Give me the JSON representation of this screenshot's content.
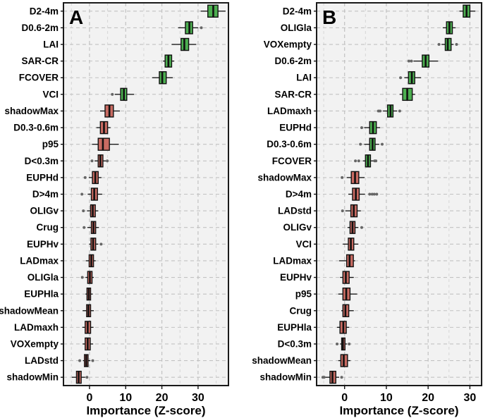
{
  "figure": {
    "xlabel": "Importance (Z-score)",
    "colors": {
      "green": "#4CAF50",
      "red": "#C96B62",
      "outlier": "#666666",
      "grid_major": "#C2C2C2",
      "grid_minor": "#D6D6D6",
      "panel_bg": "#F2F2F2",
      "border": "#1A1A1A"
    },
    "panels": [
      "A",
      "B"
    ]
  },
  "chart_data": [
    {
      "type": "boxplot-horizontal",
      "panel_label": "A",
      "xlabel": "Importance (Z-score)",
      "xticks": [
        0,
        10,
        20,
        30
      ],
      "xminor": [
        -5,
        5,
        15,
        25,
        35
      ],
      "xlim": [
        -7.2,
        38.4
      ],
      "grid": true,
      "categories": [
        "D2-4m",
        "D0.6-2m",
        "LAI",
        "SAR-CR",
        "FCOVER",
        "VCI",
        "shadowMax",
        "D0.3-0.6m",
        "p95",
        "D<0.3m",
        "EUPHd",
        "D>4m",
        "OLIGv",
        "Crug",
        "EUPHv",
        "LADmax",
        "OLIGla",
        "EUPHla",
        "shadowMean",
        "LADmaxh",
        "VOXempty",
        "LADstd",
        "shadowMin"
      ],
      "boxes": [
        {
          "label": "D2-4m",
          "color": "green",
          "lo": 30.7,
          "q1": 32.7,
          "med": 34.2,
          "q3": 35.5,
          "hi": 37.6,
          "outliers": []
        },
        {
          "label": "D0.6-2m",
          "color": "green",
          "lo": 24.5,
          "q1": 26.5,
          "med": 27.6,
          "q3": 28.5,
          "hi": 30.0,
          "outliers": [
            30.9
          ]
        },
        {
          "label": "LAI",
          "color": "green",
          "lo": 22.7,
          "q1": 25.3,
          "med": 26.2,
          "q3": 27.4,
          "hi": 29.5,
          "outliers": []
        },
        {
          "label": "SAR-CR",
          "color": "green",
          "lo": 20.3,
          "q1": 20.9,
          "med": 21.8,
          "q3": 22.7,
          "hi": 23.4,
          "outliers": []
        },
        {
          "label": "FCOVER",
          "color": "green",
          "lo": 17.3,
          "q1": 19.3,
          "med": 20.1,
          "q3": 21.2,
          "hi": 23.0,
          "outliers": []
        },
        {
          "label": "VCI",
          "color": "green",
          "lo": 7.0,
          "q1": 8.6,
          "med": 9.5,
          "q3": 10.3,
          "hi": 12.3,
          "outliers": [
            6.3
          ]
        },
        {
          "label": "shadowMax",
          "color": "red",
          "lo": 2.9,
          "q1": 4.3,
          "med": 5.5,
          "q3": 6.6,
          "hi": 8.4,
          "outliers": []
        },
        {
          "label": "D0.3-0.6m",
          "color": "red",
          "lo": 1.9,
          "q1": 3.0,
          "med": 4.0,
          "q3": 5.0,
          "hi": 5.8,
          "outliers": []
        },
        {
          "label": "p95",
          "color": "red",
          "lo": 0.7,
          "q1": 2.4,
          "med": 3.7,
          "q3": 5.5,
          "hi": 8.1,
          "outliers": []
        },
        {
          "label": "D<0.3m",
          "color": "red",
          "lo": 1.4,
          "q1": 2.4,
          "med": 3.0,
          "q3": 3.7,
          "hi": 4.5,
          "outliers": [
            0.7,
            4.9
          ]
        },
        {
          "label": "EUPHd",
          "color": "red",
          "lo": -0.2,
          "q1": 0.8,
          "med": 1.6,
          "q3": 2.4,
          "hi": 3.3,
          "outliers": [
            -1.2
          ]
        },
        {
          "label": "D>4m",
          "color": "red",
          "lo": -0.5,
          "q1": 0.5,
          "med": 1.3,
          "q3": 2.2,
          "hi": 3.5,
          "outliers": [
            -2.1
          ]
        },
        {
          "label": "OLIGv",
          "color": "red",
          "lo": -0.7,
          "q1": 0.3,
          "med": 0.9,
          "q3": 1.6,
          "hi": 2.4,
          "outliers": [
            -1.7
          ]
        },
        {
          "label": "Crug",
          "color": "red",
          "lo": -0.6,
          "q1": 0.5,
          "med": 1.1,
          "q3": 1.7,
          "hi": 2.6,
          "outliers": [
            -1.5
          ]
        },
        {
          "label": "EUPHv",
          "color": "red",
          "lo": -0.1,
          "q1": 0.4,
          "med": 1.0,
          "q3": 1.7,
          "hi": 2.4,
          "outliers": [
            3.2
          ]
        },
        {
          "label": "LADmax",
          "color": "red",
          "lo": -1.0,
          "q1": -0.1,
          "med": 0.5,
          "q3": 1.1,
          "hi": 1.7,
          "outliers": []
        },
        {
          "label": "OLIGla",
          "color": "red",
          "lo": -1.1,
          "q1": -0.5,
          "med": 0.1,
          "q3": 0.7,
          "hi": 1.2,
          "outliers": [
            -2.0
          ]
        },
        {
          "label": "EUPHla",
          "color": "red",
          "lo": -1.1,
          "q1": -0.7,
          "med": -0.2,
          "q3": 0.3,
          "hi": 0.9,
          "outliers": []
        },
        {
          "label": "shadowMean",
          "color": "red",
          "lo": -1.9,
          "q1": -0.8,
          "med": -0.3,
          "q3": 0.3,
          "hi": 1.2,
          "outliers": []
        },
        {
          "label": "LADmaxh",
          "color": "red",
          "lo": -2.0,
          "q1": -1.2,
          "med": -0.5,
          "q3": 0.3,
          "hi": 1.1,
          "outliers": []
        },
        {
          "label": "VOXempty",
          "color": "red",
          "lo": -1.9,
          "q1": -1.2,
          "med": -0.5,
          "q3": 0.2,
          "hi": 1.0,
          "outliers": []
        },
        {
          "label": "LADstd",
          "color": "red",
          "lo": -1.8,
          "q1": -1.4,
          "med": -0.9,
          "q3": -0.4,
          "hi": 0.2,
          "outliers": [
            -2.7,
            0.9
          ]
        },
        {
          "label": "shadowMin",
          "color": "red",
          "lo": -4.9,
          "q1": -3.6,
          "med": -3.0,
          "q3": -2.3,
          "hi": -1.2,
          "outliers": [
            -0.7
          ]
        }
      ]
    },
    {
      "type": "boxplot-horizontal",
      "panel_label": "B",
      "xlabel": "Importance (Z-score)",
      "xticks": [
        0,
        10,
        20,
        30
      ],
      "xminor": [
        -5,
        5,
        15,
        25
      ],
      "xlim": [
        -6.7,
        32.8
      ],
      "grid": true,
      "categories": [
        "D2-4m",
        "OLIGla",
        "VOXempty",
        "D0.6-2m",
        "LAI",
        "SAR-CR",
        "LADmaxh",
        "EUPHd",
        "D0.3-0.6m",
        "FCOVER",
        "shadowMax",
        "D>4m",
        "LADstd",
        "OLIGv",
        "VCI",
        "LADmax",
        "EUPHv",
        "p95",
        "Crug",
        "EUPHla",
        "D<0.3m",
        "shadowMean",
        "shadowMin"
      ],
      "boxes": [
        {
          "label": "D2-4m",
          "color": "green",
          "lo": 27.5,
          "q1": 28.4,
          "med": 29.2,
          "q3": 30.0,
          "hi": 31.3,
          "outliers": []
        },
        {
          "label": "OLIGla",
          "color": "green",
          "lo": 23.5,
          "q1": 24.4,
          "med": 25.1,
          "q3": 25.8,
          "hi": 26.6,
          "outliers": []
        },
        {
          "label": "VOXempty",
          "color": "green",
          "lo": 23.2,
          "q1": 24.1,
          "med": 24.7,
          "q3": 25.5,
          "hi": 26.1,
          "outliers": [
            22.6,
            26.8
          ]
        },
        {
          "label": "D0.6-2m",
          "color": "green",
          "lo": 16.5,
          "q1": 18.6,
          "med": 19.4,
          "q3": 20.2,
          "hi": 22.4,
          "outliers": [
            15.4,
            16.0
          ]
        },
        {
          "label": "LAI",
          "color": "green",
          "lo": 14.3,
          "q1": 15.3,
          "med": 16.1,
          "q3": 16.8,
          "hi": 18.3,
          "outliers": [
            13.4
          ]
        },
        {
          "label": "SAR-CR",
          "color": "green",
          "lo": 13.2,
          "q1": 13.9,
          "med": 15.0,
          "q3": 16.2,
          "hi": 16.9,
          "outliers": []
        },
        {
          "label": "LADmaxh",
          "color": "green",
          "lo": 9.2,
          "q1": 10.3,
          "med": 11.0,
          "q3": 11.6,
          "hi": 12.6,
          "outliers": [
            8.1,
            8.5,
            13.2
          ]
        },
        {
          "label": "EUPHd",
          "color": "green",
          "lo": 4.7,
          "q1": 6.0,
          "med": 6.8,
          "q3": 7.6,
          "hi": 8.5,
          "outliers": [
            4.1
          ]
        },
        {
          "label": "D0.3-0.6m",
          "color": "green",
          "lo": 4.7,
          "q1": 6.0,
          "med": 6.7,
          "q3": 7.3,
          "hi": 8.3,
          "outliers": [
            3.8,
            9.0
          ]
        },
        {
          "label": "FCOVER",
          "color": "green",
          "lo": 4.4,
          "q1": 5.0,
          "med": 5.6,
          "q3": 6.2,
          "hi": 6.9,
          "outliers": [
            2.6,
            3.4,
            7.2,
            7.5
          ]
        },
        {
          "label": "shadowMax",
          "color": "red",
          "lo": 0.5,
          "q1": 1.6,
          "med": 2.5,
          "q3": 3.4,
          "hi": 4.8,
          "outliers": [
            -0.6
          ]
        },
        {
          "label": "D>4m",
          "color": "red",
          "lo": 0.9,
          "q1": 1.9,
          "med": 2.7,
          "q3": 3.5,
          "hi": 4.9,
          "outliers": [
            6.0,
            6.6,
            7.1,
            7.7
          ]
        },
        {
          "label": "LADstd",
          "color": "red",
          "lo": 0.2,
          "q1": 1.5,
          "med": 2.2,
          "q3": 3.0,
          "hi": 3.9,
          "outliers": [
            -0.5
          ]
        },
        {
          "label": "OLIGv",
          "color": "red",
          "lo": 0.7,
          "q1": 1.3,
          "med": 1.9,
          "q3": 2.5,
          "hi": 3.3,
          "outliers": [
            4.1
          ]
        },
        {
          "label": "VCI",
          "color": "red",
          "lo": -0.4,
          "q1": 0.9,
          "med": 1.5,
          "q3": 2.2,
          "hi": 3.3,
          "outliers": []
        },
        {
          "label": "LADmax",
          "color": "red",
          "lo": -1.3,
          "q1": 0.5,
          "med": 1.2,
          "q3": 2.1,
          "hi": 2.5,
          "outliers": []
        },
        {
          "label": "EUPHv",
          "color": "red",
          "lo": -1.1,
          "q1": -0.4,
          "med": 0.3,
          "q3": 1.1,
          "hi": 2.2,
          "outliers": []
        },
        {
          "label": "p95",
          "color": "red",
          "lo": -1.5,
          "q1": -0.4,
          "med": 0.4,
          "q3": 1.3,
          "hi": 3.0,
          "outliers": []
        },
        {
          "label": "Crug",
          "color": "red",
          "lo": -0.8,
          "q1": -0.4,
          "med": 0.2,
          "q3": 1.0,
          "hi": 2.2,
          "outliers": []
        },
        {
          "label": "EUPHla",
          "color": "red",
          "lo": -1.8,
          "q1": -1.1,
          "med": -0.3,
          "q3": 0.4,
          "hi": 1.1,
          "outliers": []
        },
        {
          "label": "D<0.3m",
          "color": "red",
          "lo": -1.1,
          "q1": -0.7,
          "med": -0.4,
          "q3": 0.1,
          "hi": 0.6,
          "outliers": [
            -1.8,
            1.1
          ]
        },
        {
          "label": "shadowMean",
          "color": "red",
          "lo": -1.5,
          "q1": -0.9,
          "med": -0.2,
          "q3": 0.7,
          "hi": 1.4,
          "outliers": []
        },
        {
          "label": "shadowMin",
          "color": "red",
          "lo": -4.6,
          "q1": -3.5,
          "med": -2.9,
          "q3": -2.1,
          "hi": -1.3,
          "outliers": [
            -5.2,
            -4.9,
            -0.7
          ]
        }
      ]
    }
  ]
}
